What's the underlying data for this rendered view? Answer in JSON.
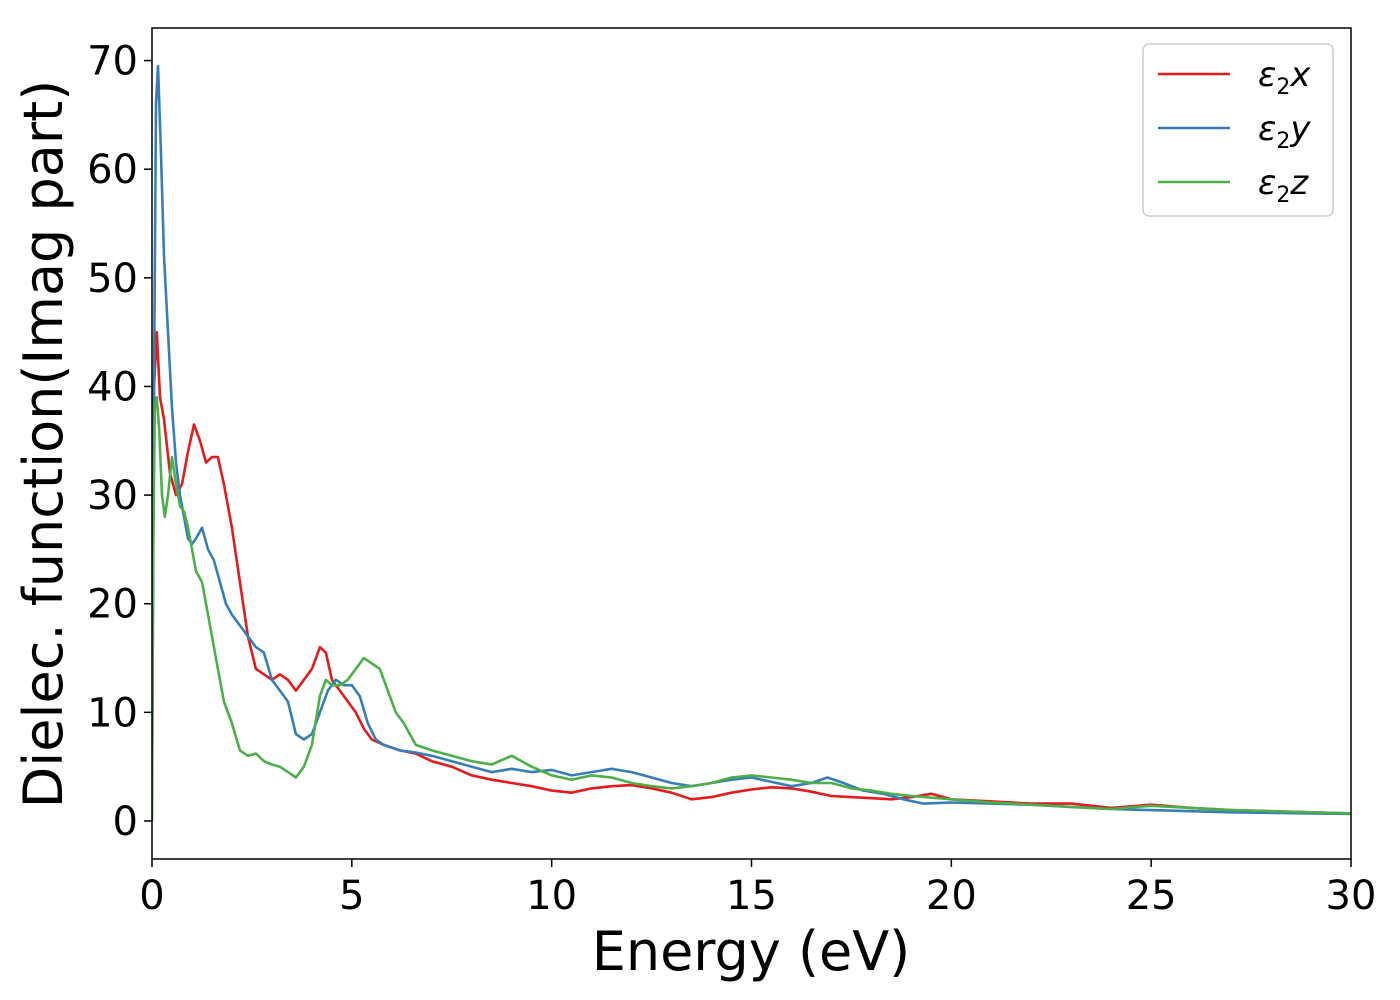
{
  "chart_data": {
    "type": "line",
    "xlabel": "Energy (eV)",
    "ylabel": "Dielec. function(Imag part)",
    "xlim": [
      0,
      30
    ],
    "ylim": [
      -3.5,
      73
    ],
    "xticks": [
      0,
      5,
      10,
      15,
      20,
      25,
      30
    ],
    "yticks": [
      0,
      10,
      20,
      30,
      40,
      50,
      60,
      70
    ],
    "grid": false,
    "legend_position": "top-right",
    "series": [
      {
        "name": "ε₂x",
        "legend": {
          "main": "ε",
          "sub": "2",
          "tail": "x"
        },
        "color": "#e41a1c",
        "x": [
          0,
          0.05,
          0.12,
          0.2,
          0.3,
          0.45,
          0.6,
          0.75,
          0.9,
          1.05,
          1.2,
          1.35,
          1.5,
          1.65,
          1.8,
          2.0,
          2.2,
          2.4,
          2.6,
          2.8,
          3.0,
          3.2,
          3.4,
          3.6,
          3.8,
          4.0,
          4.2,
          4.35,
          4.5,
          4.7,
          4.9,
          5.1,
          5.3,
          5.5,
          5.8,
          6.2,
          6.6,
          7.0,
          7.5,
          8.0,
          8.5,
          9.0,
          9.5,
          10.0,
          10.5,
          11.0,
          11.5,
          12.0,
          12.5,
          13.0,
          13.5,
          14.0,
          14.5,
          15.0,
          15.5,
          16.0,
          16.5,
          17.0,
          17.5,
          18.0,
          18.5,
          19.0,
          19.5,
          20.0,
          21.0,
          22.0,
          23.0,
          24.0,
          25.0,
          26.0,
          27.0,
          28.0,
          29.0,
          30.0
        ],
        "y": [
          5,
          40,
          45,
          39,
          37,
          32,
          30,
          31,
          34,
          36.5,
          35,
          33,
          33.5,
          33.5,
          31,
          27,
          22,
          17,
          14,
          13.5,
          13,
          13.5,
          13,
          12,
          13,
          14,
          16,
          15.5,
          13,
          12,
          11,
          10,
          8.5,
          7.5,
          7,
          6.5,
          6.2,
          5.5,
          5,
          4.2,
          3.8,
          3.5,
          3.2,
          2.8,
          2.6,
          3.0,
          3.2,
          3.3,
          3.0,
          2.6,
          2.0,
          2.2,
          2.6,
          2.9,
          3.1,
          3.0,
          2.7,
          2.3,
          2.2,
          2.1,
          2.0,
          2.2,
          2.5,
          2.0,
          1.8,
          1.6,
          1.6,
          1.2,
          1.5,
          1.2,
          1.0,
          0.9,
          0.8,
          0.7
        ]
      },
      {
        "name": "ε₂y",
        "legend": {
          "main": "ε",
          "sub": "2",
          "tail": "y"
        },
        "color": "#377eb8",
        "x": [
          0,
          0.05,
          0.1,
          0.15,
          0.22,
          0.3,
          0.4,
          0.5,
          0.6,
          0.7,
          0.8,
          0.9,
          1.0,
          1.1,
          1.25,
          1.4,
          1.55,
          1.7,
          1.85,
          2.0,
          2.2,
          2.4,
          2.6,
          2.8,
          3.0,
          3.2,
          3.4,
          3.6,
          3.8,
          4.0,
          4.2,
          4.4,
          4.6,
          4.8,
          5.0,
          5.2,
          5.4,
          5.6,
          5.8,
          6.2,
          6.6,
          7.0,
          7.5,
          8.0,
          8.5,
          9.0,
          9.5,
          10.0,
          10.5,
          11.0,
          11.5,
          12.0,
          12.5,
          13.0,
          13.5,
          14.0,
          14.5,
          15.0,
          15.5,
          16.0,
          16.5,
          16.9,
          17.3,
          17.8,
          18.3,
          18.8,
          19.3,
          20.0,
          21.0,
          22.0,
          23.0,
          24.0,
          25.0,
          26.0,
          27.0,
          28.0,
          29.0,
          30.0
        ],
        "y": [
          2,
          40,
          66,
          69.5,
          62,
          52,
          45,
          38,
          33,
          30,
          28,
          26,
          25.5,
          26,
          27,
          25,
          24,
          22,
          20,
          19,
          18,
          17,
          16,
          15.5,
          13,
          12,
          11,
          8,
          7.5,
          8,
          10,
          12,
          13,
          12.5,
          12.5,
          11.5,
          9,
          7.5,
          7,
          6.5,
          6.3,
          6.0,
          5.5,
          5.0,
          4.5,
          4.8,
          4.5,
          4.7,
          4.2,
          4.5,
          4.8,
          4.5,
          4.0,
          3.5,
          3.2,
          3.5,
          3.8,
          4.0,
          3.6,
          3.2,
          3.5,
          4.0,
          3.5,
          2.8,
          2.5,
          2.0,
          1.6,
          1.7,
          1.6,
          1.5,
          1.3,
          1.1,
          1.0,
          0.9,
          0.8,
          0.75,
          0.7,
          0.65
        ]
      },
      {
        "name": "ε₂z",
        "legend": {
          "main": "ε",
          "sub": "2",
          "tail": "z"
        },
        "color": "#4daf4a",
        "x": [
          0,
          0.03,
          0.07,
          0.12,
          0.18,
          0.25,
          0.32,
          0.4,
          0.5,
          0.6,
          0.7,
          0.8,
          0.9,
          1.0,
          1.1,
          1.25,
          1.4,
          1.6,
          1.8,
          2.0,
          2.2,
          2.4,
          2.6,
          2.8,
          3.0,
          3.2,
          3.4,
          3.6,
          3.8,
          4.0,
          4.2,
          4.35,
          4.5,
          4.7,
          4.9,
          5.1,
          5.3,
          5.5,
          5.7,
          5.9,
          6.1,
          6.3,
          6.6,
          7.0,
          7.5,
          8.0,
          8.5,
          9.0,
          9.5,
          10.0,
          10.5,
          11.0,
          11.5,
          12.0,
          12.5,
          13.0,
          13.5,
          14.0,
          14.5,
          15.0,
          15.5,
          16.0,
          16.5,
          17.0,
          17.5,
          18.0,
          18.5,
          19.0,
          20.0,
          21.0,
          22.0,
          23.0,
          24.0,
          25.0,
          26.0,
          27.0,
          28.0,
          29.0,
          30.0
        ],
        "y": [
          0,
          25,
          38,
          39,
          36,
          30,
          28,
          30,
          33.5,
          31,
          29,
          28.5,
          27,
          25,
          23,
          22,
          19,
          15,
          11,
          9,
          6.5,
          6.0,
          6.2,
          5.5,
          5.2,
          5.0,
          4.5,
          4.0,
          5.0,
          7,
          11.5,
          13,
          12.5,
          12.5,
          13,
          14,
          15,
          14.5,
          14,
          12,
          10,
          9,
          7,
          6.5,
          6.0,
          5.5,
          5.2,
          6.0,
          5.0,
          4.2,
          3.8,
          4.2,
          4.0,
          3.5,
          3.2,
          3.0,
          3.2,
          3.5,
          4.0,
          4.2,
          4.0,
          3.8,
          3.5,
          3.5,
          3.0,
          2.8,
          2.5,
          2.3,
          2.0,
          1.7,
          1.5,
          1.3,
          1.1,
          1.4,
          1.2,
          1.0,
          0.9,
          0.8,
          0.7
        ]
      }
    ]
  }
}
